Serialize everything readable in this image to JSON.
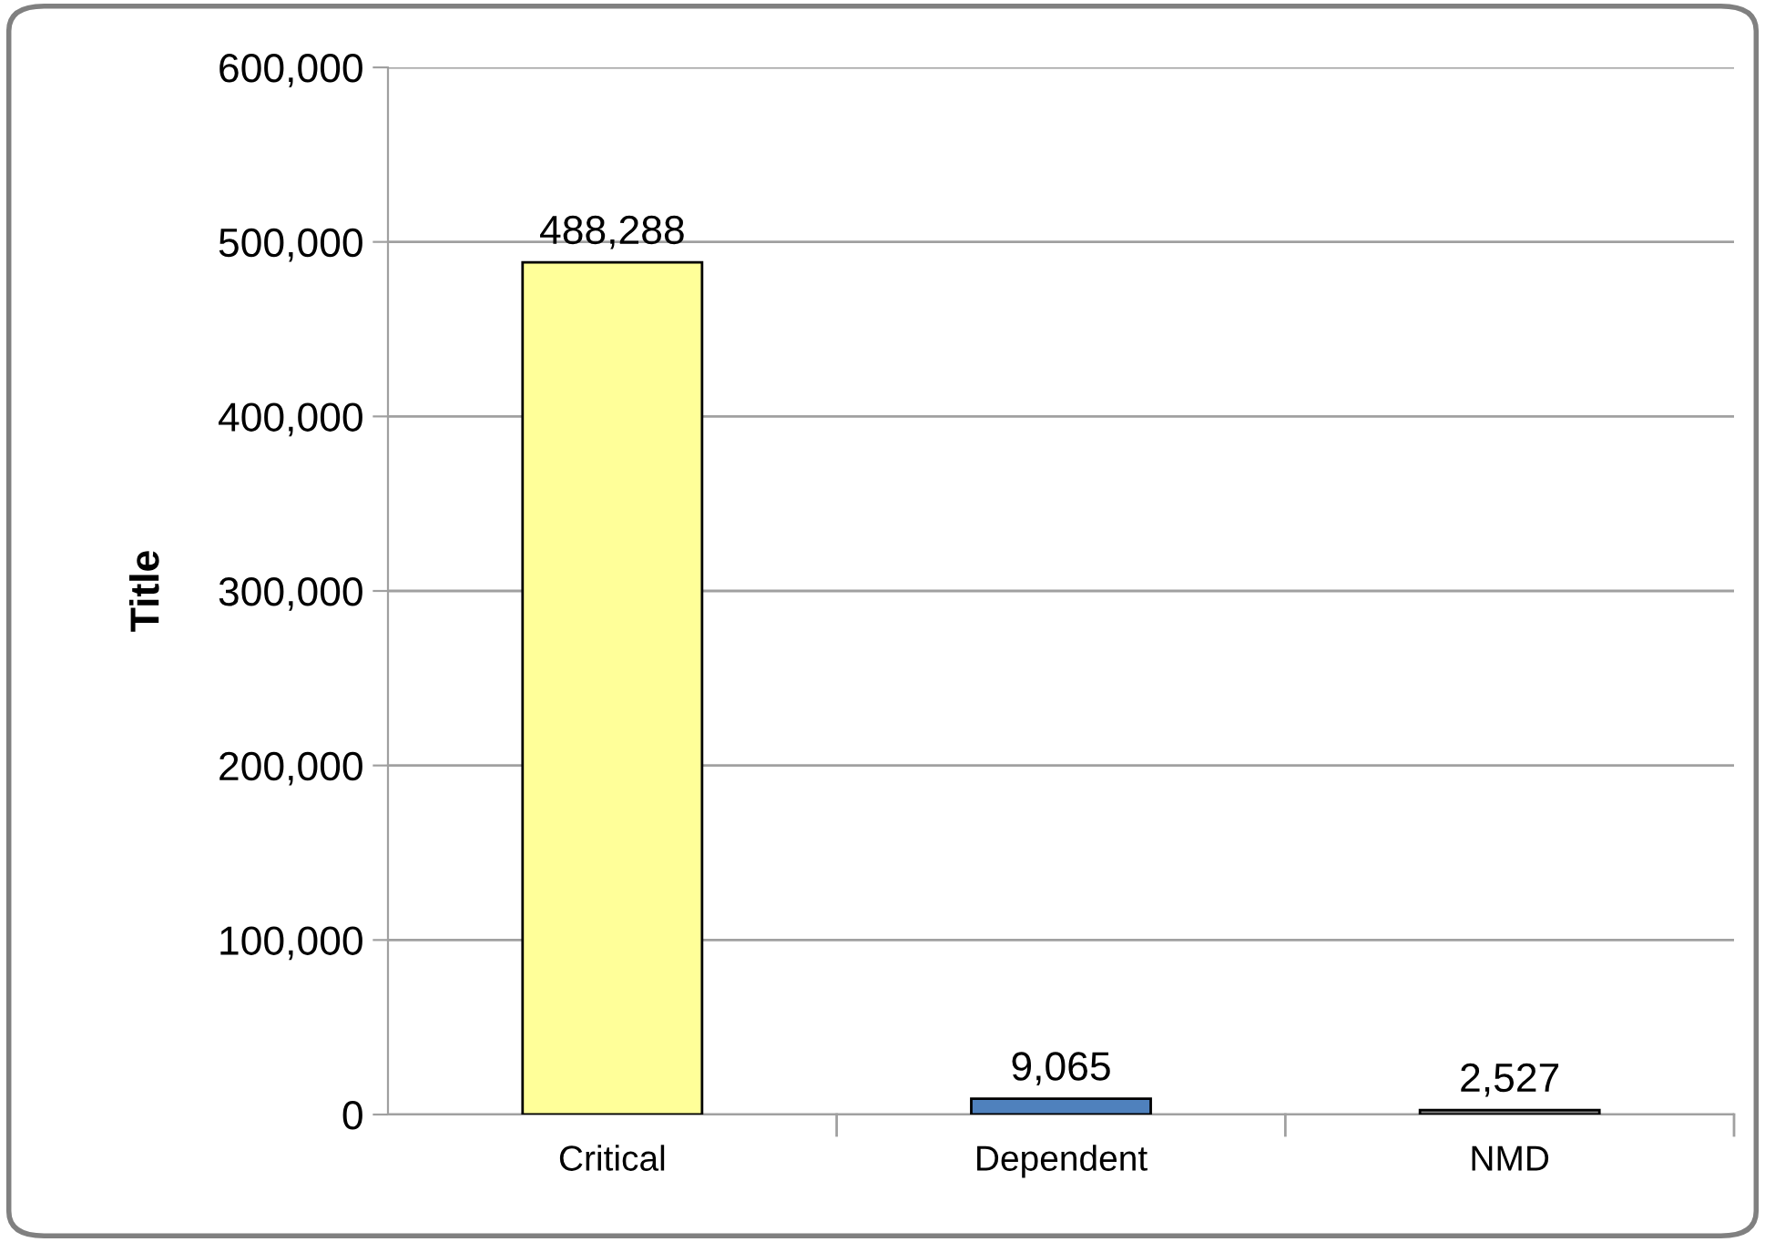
{
  "chart_data": {
    "type": "bar",
    "ylabel": "Title",
    "categories": [
      "Critical",
      "Dependent",
      "NMD"
    ],
    "values": [
      488288,
      9065,
      2527
    ],
    "colors": [
      "#ffff99",
      "#4f81bd",
      "#808080"
    ],
    "value_labels": [
      "488,288",
      "9,065",
      "2,527"
    ],
    "ylim": [
      0,
      600000
    ],
    "yticks": [
      {
        "value": 0,
        "label": "0"
      },
      {
        "value": 100000,
        "label": "100,000"
      },
      {
        "value": 200000,
        "label": "200,000"
      },
      {
        "value": 300000,
        "label": "300,000"
      },
      {
        "value": 400000,
        "label": "400,000"
      },
      {
        "value": 500000,
        "label": "500,000"
      },
      {
        "value": 600000,
        "label": "600,000"
      }
    ],
    "grid": "y",
    "legend": false
  }
}
